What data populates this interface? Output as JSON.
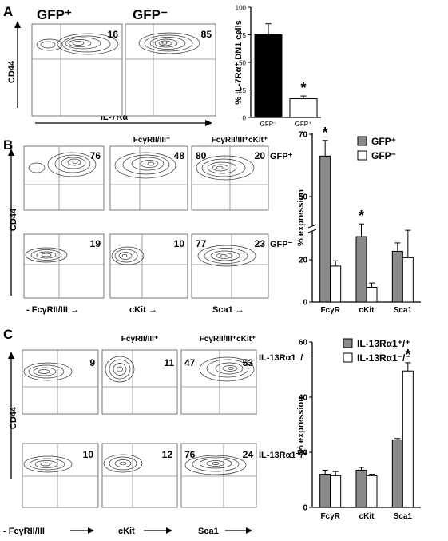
{
  "panels": {
    "A": {
      "letter": "A",
      "headers": [
        "GFP⁺",
        "GFP⁻"
      ],
      "y_label": "CD44",
      "x_label": "IL-7Rα",
      "plots": [
        {
          "quadrants": [
            "",
            "16"
          ]
        },
        {
          "quadrants": [
            "",
            "85"
          ]
        }
      ]
    },
    "B": {
      "letter": "B",
      "headers": [
        "",
        "FcγRII/III⁺",
        "FcγRII/III⁺cKit⁺"
      ],
      "y_label": "CD44",
      "x_labels": [
        "- FcγRII/III →",
        "cKit →",
        "Sca1 →"
      ],
      "rows": [
        {
          "label": "GFP⁺",
          "plots": [
            {
              "quadrants": [
                "",
                "76"
              ]
            },
            {
              "quadrants": [
                "",
                "48"
              ]
            },
            {
              "quadrants": [
                "80",
                "20"
              ]
            }
          ]
        },
        {
          "label": "GFP⁻",
          "plots": [
            {
              "quadrants": [
                "",
                "19"
              ]
            },
            {
              "quadrants": [
                "",
                "10"
              ]
            },
            {
              "quadrants": [
                "77",
                "23"
              ]
            }
          ]
        }
      ]
    },
    "C": {
      "letter": "C",
      "headers": [
        "",
        "FcγRII/III⁺",
        "FcγRII/III⁺cKit⁺"
      ],
      "y_label": "CD44",
      "x_labels": [
        "- FcγRII/III",
        "cKit",
        "Sca1"
      ],
      "rows": [
        {
          "label": "IL-13Rα1⁻/⁻",
          "plots": [
            {
              "quadrants": [
                "",
                "9"
              ]
            },
            {
              "quadrants": [
                "",
                "11"
              ]
            },
            {
              "quadrants": [
                "47",
                "53"
              ]
            }
          ]
        },
        {
          "label": "IL-13Rα1⁺/⁺",
          "plots": [
            {
              "quadrants": [
                "",
                "10"
              ]
            },
            {
              "quadrants": [
                "",
                "12"
              ]
            },
            {
              "quadrants": [
                "76",
                "24"
              ]
            }
          ]
        }
      ]
    }
  },
  "chart_data": [
    {
      "id": "A",
      "type": "bar",
      "categories": [
        "GFP⁻",
        "GFP⁺"
      ],
      "series": [
        {
          "values": [
            75,
            17
          ],
          "errors": [
            10,
            2.5
          ],
          "colors": [
            "#000000",
            "#ffffff"
          ]
        }
      ],
      "ylabel": "% IL-7Rα⁺ DN1 cells",
      "ylim": [
        0,
        100
      ],
      "yticks": [
        0,
        25,
        50,
        75,
        100
      ],
      "annotations": [
        {
          "category": "GFP⁺",
          "text": "*"
        }
      ]
    },
    {
      "id": "B",
      "type": "bar",
      "categories": [
        "FcγR",
        "cKit",
        "Sca1"
      ],
      "series": [
        {
          "name": "GFP⁺",
          "color": "#8a8a8a",
          "values": [
            63,
            31,
            24
          ],
          "errors": [
            5,
            6,
            4
          ]
        },
        {
          "name": "GFP⁻",
          "color": "#ffffff",
          "values": [
            17,
            7,
            21
          ],
          "errors": [
            2.5,
            2,
            13
          ]
        }
      ],
      "ylabel": "% expression",
      "ylim": [
        0,
        70
      ],
      "yticks": [
        0,
        20,
        50,
        70
      ],
      "axis_break": true,
      "legend": "top-right",
      "annotations": [
        {
          "category": "FcγR",
          "text": "*"
        },
        {
          "category": "cKit",
          "text": "*"
        }
      ]
    },
    {
      "id": "C",
      "type": "bar",
      "categories": [
        "FcγR",
        "cKit",
        "Sca1"
      ],
      "series": [
        {
          "name": "IL-13Rα1⁺/⁺",
          "color": "#8a8a8a",
          "values": [
            12,
            13.5,
            24.5
          ],
          "errors": [
            1.5,
            1,
            0.5
          ]
        },
        {
          "name": "IL-13Rα1⁻/⁻",
          "color": "#ffffff",
          "values": [
            11.5,
            11.5,
            49.5
          ],
          "errors": [
            1.5,
            0.5,
            3
          ]
        }
      ],
      "ylabel": "% expression",
      "ylim": [
        0,
        60
      ],
      "yticks": [
        0,
        20,
        40,
        60
      ],
      "legend": "top-right",
      "annotations": [
        {
          "category": "Sca1",
          "text": "*"
        }
      ]
    }
  ]
}
